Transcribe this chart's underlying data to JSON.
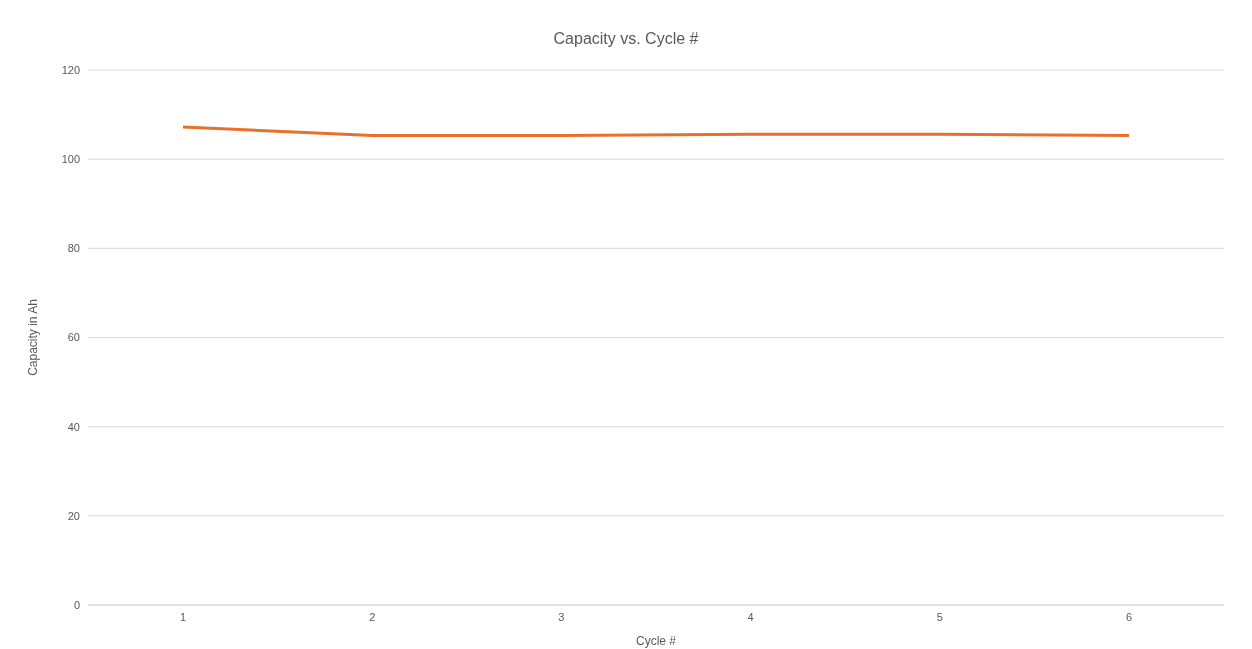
{
  "chart_data": {
    "type": "line",
    "title": "Capacity vs. Cycle #",
    "xlabel": "Cycle #",
    "ylabel": "Capacity in Ah",
    "categories": [
      "1",
      "2",
      "3",
      "4",
      "5",
      "6"
    ],
    "series": [
      {
        "color": "#e8702a",
        "values": [
          107.2,
          105.3,
          105.3,
          105.6,
          105.6,
          105.3
        ]
      }
    ],
    "ylim": [
      0,
      120
    ],
    "yticks": [
      0,
      20,
      40,
      60,
      80,
      100,
      120
    ],
    "grid": "y",
    "marker": "none",
    "line_style": "solid"
  }
}
